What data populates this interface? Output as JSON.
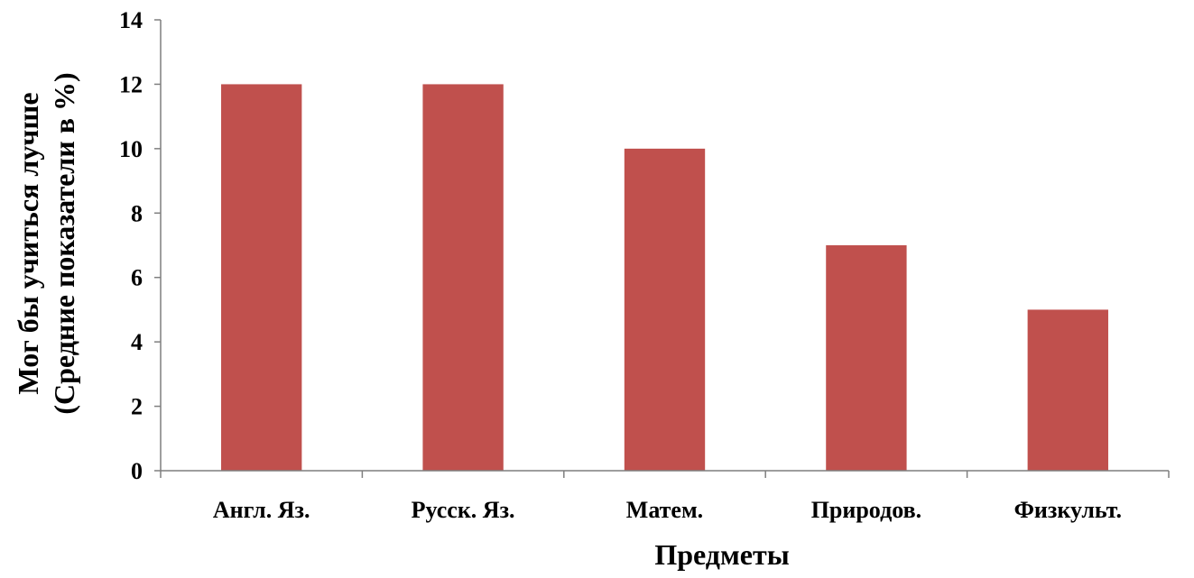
{
  "chart_data": {
    "type": "bar",
    "categories": [
      "Англ. Яз.",
      "Русск. Яз.",
      "Матем.",
      "Природов.",
      "Физкульт."
    ],
    "series": [
      {
        "values": [
          12,
          12,
          10,
          7,
          5
        ]
      }
    ],
    "xlabel": "Предметы",
    "ylabel_lines": [
      "Мог бы  учиться лучше",
      "(Средние показатели в %)"
    ],
    "ylim": [
      0,
      14
    ],
    "yticks": [
      0,
      2,
      4,
      6,
      8,
      10,
      12,
      14
    ],
    "grid": false,
    "legend": "none",
    "bar_color": "#c0504d"
  }
}
